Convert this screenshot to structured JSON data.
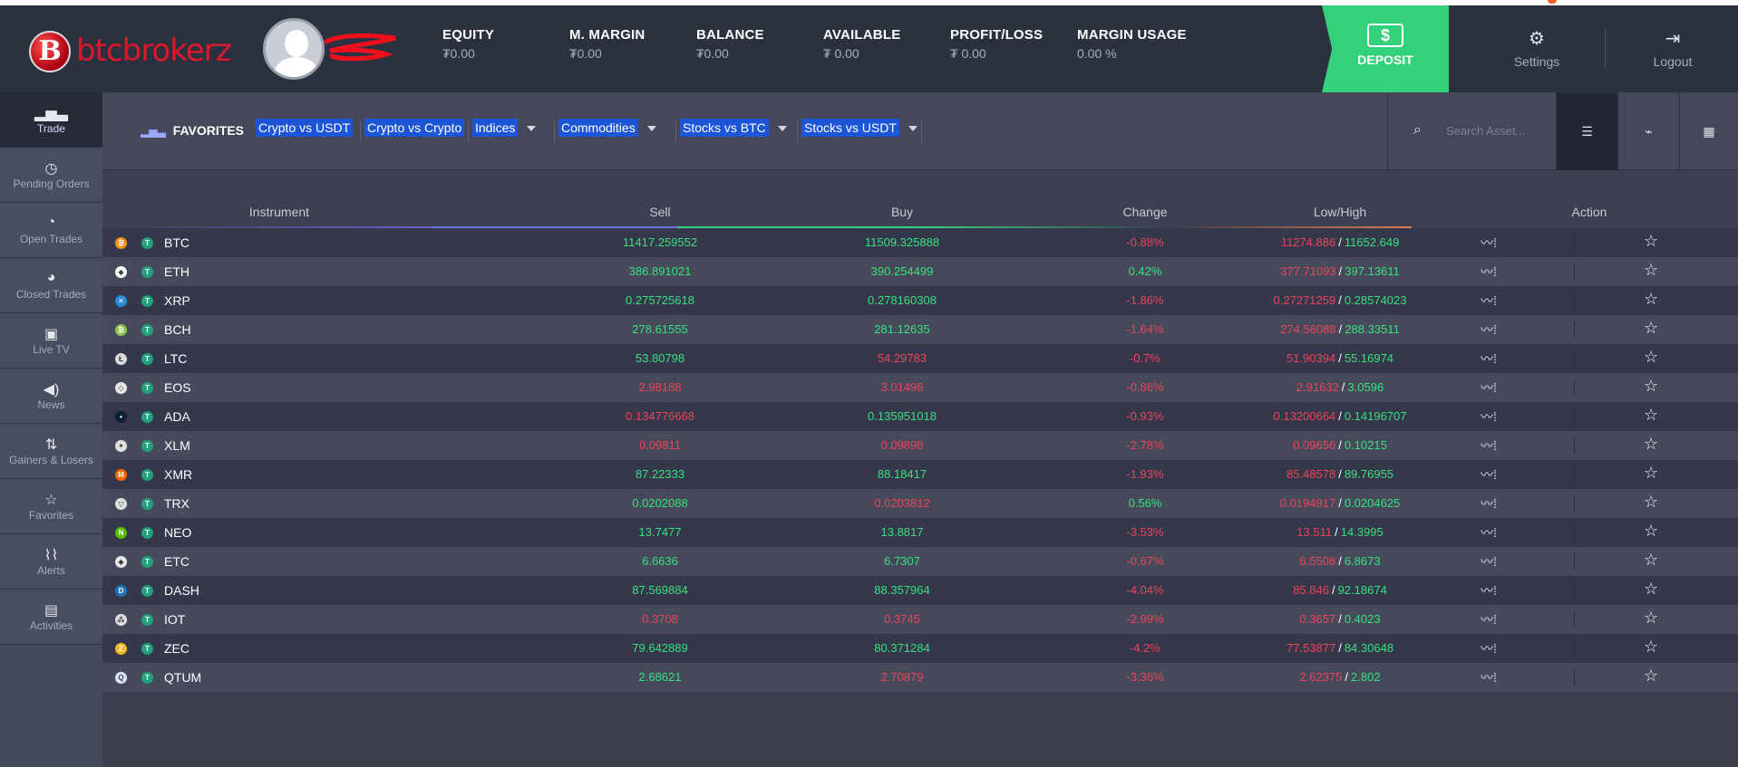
{
  "brand": {
    "badge": "B",
    "name": "btcbrokerz"
  },
  "stats": [
    {
      "label": "EQUITY",
      "value": "₮0.00"
    },
    {
      "label": "M. MARGIN",
      "value": "₮0.00"
    },
    {
      "label": "BALANCE",
      "value": "₮0.00"
    },
    {
      "label": "AVAILABLE",
      "value": "₮ 0.00"
    },
    {
      "label": "PROFIT/LOSS",
      "value": "₮ 0.00"
    },
    {
      "label": "MARGIN USAGE",
      "value": "0.00 %"
    }
  ],
  "header": {
    "deposit": "DEPOSIT",
    "settings": "Settings",
    "logout": "Logout"
  },
  "sidebar": [
    {
      "label": "Trade",
      "icon": "bar-chart-icon"
    },
    {
      "label": "Pending Orders",
      "icon": "stopwatch-icon"
    },
    {
      "label": "Open Trades",
      "icon": "open-trade-icon"
    },
    {
      "label": "Closed Trades",
      "icon": "closed-trade-icon"
    },
    {
      "label": "Live TV",
      "icon": "tv-icon"
    },
    {
      "label": "News",
      "icon": "megaphone-icon"
    },
    {
      "label": "Gainers & Losers",
      "icon": "gainers-icon"
    },
    {
      "label": "Favorites",
      "icon": "star-icon"
    },
    {
      "label": "Alerts",
      "icon": "alert-chart-icon"
    },
    {
      "label": "Activities",
      "icon": "activities-icon"
    }
  ],
  "filters": {
    "favorites": "FAVORITES",
    "chips": [
      "Crypto vs USDT",
      "Crypto vs Crypto",
      "Indices",
      "Commodities",
      "Stocks vs BTC",
      "Stocks vs USDT"
    ]
  },
  "search": {
    "placeholder": "Search Asset..."
  },
  "table": {
    "headers": [
      "Instrument",
      "Sell",
      "Buy",
      "Change",
      "Low/High",
      "Action"
    ],
    "rows": [
      {
        "sym": "BTC",
        "color": "#f7931a",
        "glyph": "₿",
        "sell": "11417.259552",
        "sellc": "g",
        "buy": "11509.325888",
        "buyc": "g",
        "chg": "-0.88%",
        "chgc": "r",
        "low": "11274.886",
        "high": "11652.649"
      },
      {
        "sym": "ETH",
        "color": "#ffffff",
        "glyph": "◆",
        "sell": "386.891021",
        "sellc": "g",
        "buy": "390.254499",
        "buyc": "g",
        "chg": "0.42%",
        "chgc": "g",
        "low": "377.71093",
        "high": "397.13611"
      },
      {
        "sym": "XRP",
        "color": "#2a8bd6",
        "glyph": "✕",
        "sell": "0.275725618",
        "sellc": "g",
        "buy": "0.278160308",
        "buyc": "g",
        "chg": "-1.86%",
        "chgc": "r",
        "low": "0.27271259",
        "high": "0.28574023"
      },
      {
        "sym": "BCH",
        "color": "#8dc351",
        "glyph": "₿",
        "sell": "278.61555",
        "sellc": "g",
        "buy": "281.12635",
        "buyc": "g",
        "chg": "-1.64%",
        "chgc": "r",
        "low": "274.56088",
        "high": "288.33511"
      },
      {
        "sym": "LTC",
        "color": "#dcdcdc",
        "glyph": "Ł",
        "sell": "53.80798",
        "sellc": "g",
        "buy": "54.29783",
        "buyc": "r",
        "chg": "-0.7%",
        "chgc": "r",
        "low": "51.90394",
        "high": "55.16974"
      },
      {
        "sym": "EOS",
        "color": "#e8e8e8",
        "glyph": "◇",
        "sell": "2.98188",
        "sellc": "r",
        "buy": "3.01498",
        "buyc": "r",
        "chg": "-0.86%",
        "chgc": "r",
        "low": "2.91632",
        "high": "3.0596"
      },
      {
        "sym": "ADA",
        "color": "#0d1e35",
        "glyph": "•",
        "sell": "0.134776668",
        "sellc": "r",
        "buy": "0.135951018",
        "buyc": "g",
        "chg": "-0.93%",
        "chgc": "r",
        "low": "0.13200664",
        "high": "0.14196707"
      },
      {
        "sym": "XLM",
        "color": "#e0e0e0",
        "glyph": "✦",
        "sell": "0.09811",
        "sellc": "r",
        "buy": "0.09898",
        "buyc": "r",
        "chg": "-2.78%",
        "chgc": "r",
        "low": "0.09656",
        "high": "0.10215"
      },
      {
        "sym": "XMR",
        "color": "#ff6600",
        "glyph": "M",
        "sell": "87.22333",
        "sellc": "g",
        "buy": "88.18417",
        "buyc": "g",
        "chg": "-1.93%",
        "chgc": "r",
        "low": "85.48578",
        "high": "89.76955"
      },
      {
        "sym": "TRX",
        "color": "#e0e0e0",
        "glyph": "▽",
        "sell": "0.0202088",
        "sellc": "g",
        "buy": "0.0203812",
        "buyc": "r",
        "chg": "0.56%",
        "chgc": "g",
        "low": "0.0194917",
        "high": "0.0204625"
      },
      {
        "sym": "NEO",
        "color": "#58bf00",
        "glyph": "N",
        "sell": "13.7477",
        "sellc": "g",
        "buy": "13.8817",
        "buyc": "g",
        "chg": "-3.53%",
        "chgc": "r",
        "low": "13.511",
        "high": "14.3995"
      },
      {
        "sym": "ETC",
        "color": "#e8e8e8",
        "glyph": "◆",
        "sell": "6.6636",
        "sellc": "g",
        "buy": "6.7307",
        "buyc": "g",
        "chg": "-0.67%",
        "chgc": "r",
        "low": "6.5508",
        "high": "6.8673"
      },
      {
        "sym": "DASH",
        "color": "#1c75bc",
        "glyph": "D",
        "sell": "87.569884",
        "sellc": "g",
        "buy": "88.357964",
        "buyc": "g",
        "chg": "-4.04%",
        "chgc": "r",
        "low": "85.846",
        "high": "92.18674"
      },
      {
        "sym": "IOT",
        "color": "#e0e0e0",
        "glyph": "⁂",
        "sell": "0.3708",
        "sellc": "r",
        "buy": "0.3745",
        "buyc": "r",
        "chg": "-2.99%",
        "chgc": "r",
        "low": "0.3657",
        "high": "0.4023"
      },
      {
        "sym": "ZEC",
        "color": "#f4b728",
        "glyph": "Z",
        "sell": "79.642889",
        "sellc": "g",
        "buy": "80.371284",
        "buyc": "g",
        "chg": "-4.2%",
        "chgc": "r",
        "low": "77.53877",
        "high": "84.30648"
      },
      {
        "sym": "QTUM",
        "color": "#dbe7f5",
        "glyph": "Q",
        "sell": "2.68621",
        "sellc": "g",
        "buy": "2.70879",
        "buyc": "r",
        "chg": "-3.36%",
        "chgc": "r",
        "low": "2.62375",
        "high": "2.802"
      }
    ]
  }
}
